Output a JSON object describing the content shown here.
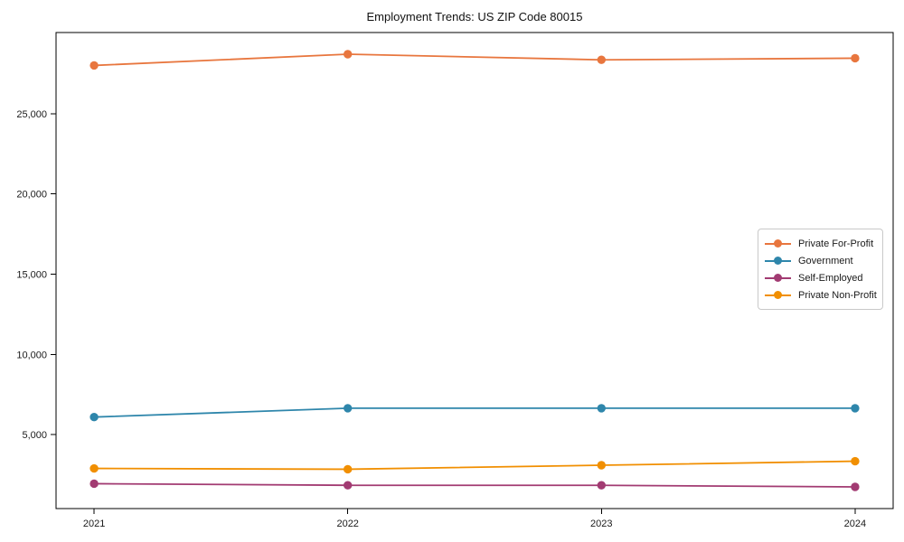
{
  "title": "Employment Trends: US ZIP Code 80015",
  "chart_data": {
    "type": "line",
    "title": "Employment Trends: US ZIP Code 80015",
    "xlabel": "",
    "ylabel": "",
    "x": [
      2021,
      2022,
      2023,
      2024
    ],
    "xticklabels": [
      "2021",
      "2022",
      "2023",
      "2024"
    ],
    "yticks": [
      5000,
      10000,
      15000,
      20000,
      25000
    ],
    "yticklabels": [
      "5,000",
      "10,000",
      "15,000",
      "20,000",
      "25,000"
    ],
    "xlim": [
      2020.85,
      2024.15
    ],
    "ylim": [
      400,
      30050
    ],
    "grid": false,
    "legend_position": "center-right",
    "series": [
      {
        "name": "Private For-Profit",
        "color": "#E8763E",
        "values": [
          28000,
          28700,
          28350,
          28450
        ]
      },
      {
        "name": "Government",
        "color": "#2E86AB",
        "values": [
          6100,
          6650,
          6650,
          6650
        ]
      },
      {
        "name": "Self-Employed",
        "color": "#A23B72",
        "values": [
          1950,
          1850,
          1850,
          1750
        ]
      },
      {
        "name": "Private Non-Profit",
        "color": "#F18F01",
        "values": [
          2900,
          2850,
          3100,
          3350
        ]
      }
    ]
  }
}
